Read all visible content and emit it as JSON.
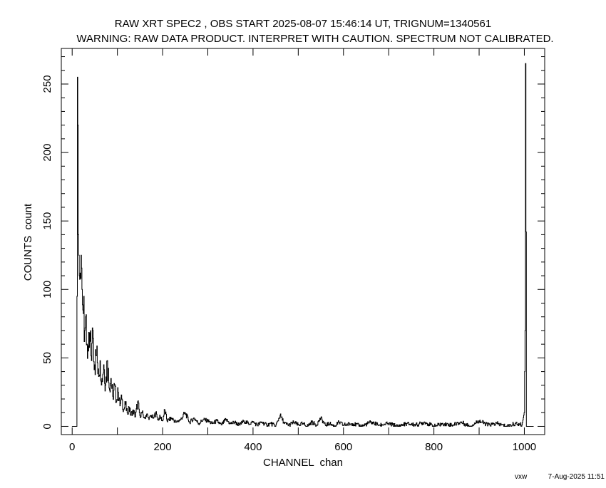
{
  "chart_data": {
    "type": "line",
    "style": "histogram-step",
    "title": "RAW XRT SPEC2 , OBS START 2025-08-07 15:46:14 UT, TRIGNUM=1340561",
    "subtitle": "WARNING: RAW DATA PRODUCT. INTERPRET WITH CAUTION. SPECTRUM NOT CALIBRATED.",
    "xlabel": "CHANNEL  chan",
    "ylabel": "COUNTS  count",
    "xlim": [
      -24,
      1045
    ],
    "ylim": [
      -6,
      276
    ],
    "x_ticks": [
      0,
      200,
      400,
      600,
      800,
      1000
    ],
    "y_ticks": [
      0,
      50,
      100,
      150,
      200,
      250
    ],
    "grid": false,
    "line_color": "#000000",
    "x": [
      0,
      10,
      11,
      12,
      13,
      14,
      16,
      18,
      20,
      22,
      24,
      26,
      28,
      30,
      33,
      36,
      40,
      43,
      46,
      50,
      54,
      58,
      62,
      66,
      70,
      74,
      78,
      82,
      86,
      90,
      94,
      98,
      102,
      106,
      110,
      114,
      118,
      122,
      126,
      130,
      135,
      140,
      145,
      150,
      155,
      160,
      165,
      170,
      175,
      180,
      185,
      190,
      195,
      200,
      205,
      210,
      220,
      230,
      240,
      250,
      260,
      270,
      280,
      290,
      300,
      310,
      320,
      330,
      340,
      350,
      360,
      370,
      380,
      390,
      400,
      410,
      420,
      430,
      440,
      450,
      460,
      470,
      480,
      490,
      500,
      510,
      520,
      530,
      540,
      550,
      560,
      570,
      580,
      590,
      600,
      620,
      640,
      660,
      680,
      700,
      720,
      740,
      760,
      780,
      800,
      820,
      840,
      860,
      880,
      900,
      920,
      940,
      960,
      980,
      995,
      1000,
      1002,
      1003,
      1004,
      1005,
      1020
    ],
    "y": [
      0,
      0,
      95,
      255,
      220,
      140,
      110,
      112,
      125,
      100,
      85,
      95,
      70,
      80,
      60,
      55,
      62,
      48,
      70,
      45,
      52,
      42,
      48,
      35,
      45,
      30,
      48,
      28,
      35,
      22,
      30,
      18,
      25,
      15,
      20,
      12,
      16,
      10,
      14,
      8,
      12,
      7,
      18,
      8,
      10,
      6,
      9,
      5,
      8,
      6,
      10,
      5,
      7,
      4,
      12,
      4,
      6,
      3,
      5,
      10,
      3,
      6,
      2,
      5,
      4,
      2,
      4,
      1,
      5,
      2,
      3,
      1,
      4,
      2,
      3,
      1,
      3,
      1,
      2,
      0,
      8,
      2,
      1,
      3,
      1,
      2,
      0,
      3,
      1,
      6,
      1,
      2,
      0,
      3,
      1,
      2,
      0,
      3,
      1,
      2,
      0,
      2,
      1,
      3,
      0,
      2,
      1,
      3,
      0,
      4,
      1,
      2,
      0,
      2,
      1,
      10,
      70,
      265,
      142,
      0,
      0
    ]
  },
  "footer": {
    "user": "vxw",
    "timestamp": "7-Aug-2025 11:51"
  }
}
